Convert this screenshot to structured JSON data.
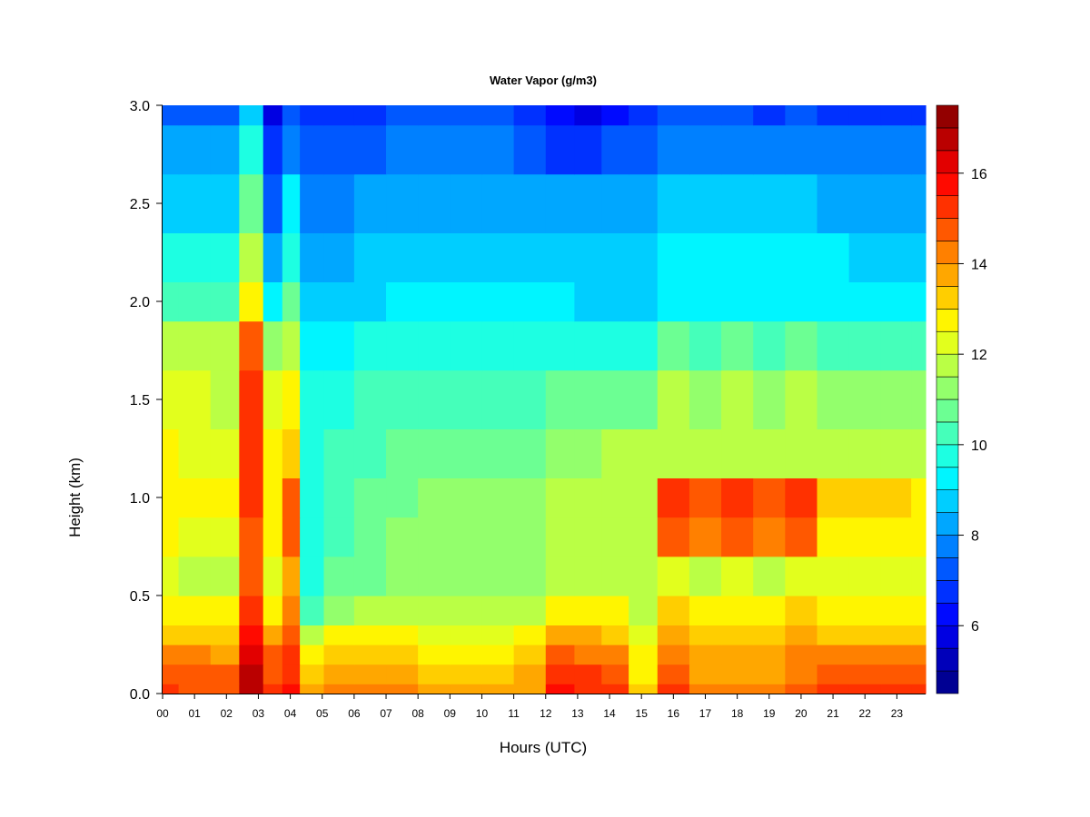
{
  "chart_data": {
    "type": "heatmap",
    "title": "Water Vapor (g/m3)",
    "xlabel": "Hours (UTC)",
    "ylabel": "Height (km)",
    "xlim": [
      0,
      23.9
    ],
    "ylim": [
      0.0,
      3.0
    ],
    "x_ticks": [
      "00",
      "01",
      "02",
      "03",
      "04",
      "05",
      "06",
      "07",
      "08",
      "09",
      "10",
      "11",
      "12",
      "13",
      "14",
      "15",
      "16",
      "17",
      "18",
      "19",
      "20",
      "21",
      "22",
      "23"
    ],
    "y_ticks": [
      "0.0",
      "0.5",
      "1.0",
      "1.5",
      "2.0",
      "2.5",
      "3.0"
    ],
    "colorbar": {
      "range": [
        4.5,
        17.5
      ],
      "ticks": [
        "6",
        "8",
        "10",
        "12",
        "14",
        "16"
      ],
      "levels": 26,
      "colormap": "jet"
    },
    "heights_km": [
      0.0,
      0.1,
      0.2,
      0.3,
      0.4,
      0.6,
      0.8,
      1.0,
      1.2,
      1.5,
      1.8,
      2.0,
      2.2,
      2.5,
      2.8,
      3.0
    ],
    "hours_utc": [
      0.0,
      1.0,
      2.0,
      2.8,
      3.5,
      4.0,
      4.6,
      5.5,
      6.5,
      7.5,
      8.5,
      9.5,
      10.5,
      11.5,
      12.5,
      13.3,
      14.2,
      15.0,
      16.0,
      17.0,
      18.0,
      19.0,
      20.0,
      21.0,
      22.0,
      23.0,
      23.9
    ],
    "values_g_m3": [
      [
        15.0,
        14.8,
        14.8,
        16.8,
        15.2,
        15.5,
        13.5,
        14.0,
        14.0,
        14.0,
        13.5,
        13.5,
        13.5,
        13.8,
        15.5,
        15.3,
        15.3,
        13.0,
        15.0,
        14.0,
        14.0,
        14.0,
        14.8,
        15.0,
        15.0,
        15.0,
        15.0
      ],
      [
        14.5,
        14.5,
        14.5,
        16.5,
        14.8,
        15.3,
        13.0,
        13.8,
        13.6,
        13.5,
        13.0,
        13.0,
        13.0,
        13.5,
        15.3,
        15.0,
        14.8,
        12.8,
        14.5,
        13.5,
        13.5,
        13.5,
        14.3,
        14.5,
        14.5,
        14.5,
        14.5
      ],
      [
        14.0,
        14.0,
        13.8,
        16.2,
        14.5,
        15.0,
        12.5,
        13.3,
        13.2,
        13.3,
        12.8,
        12.8,
        12.8,
        13.0,
        14.5,
        14.2,
        14.0,
        12.5,
        14.0,
        13.5,
        13.5,
        13.5,
        14.0,
        14.0,
        14.0,
        14.0,
        14.0
      ],
      [
        13.2,
        13.3,
        13.2,
        15.5,
        13.6,
        14.5,
        11.5,
        12.5,
        12.5,
        12.8,
        12.3,
        12.3,
        12.3,
        12.5,
        13.8,
        13.5,
        13.3,
        12.3,
        13.5,
        13.0,
        13.0,
        13.0,
        13.5,
        13.3,
        13.3,
        13.3,
        13.3
      ],
      [
        12.5,
        12.5,
        12.5,
        15.0,
        12.8,
        14.0,
        10.3,
        11.3,
        11.5,
        12.0,
        11.8,
        11.8,
        11.8,
        11.8,
        12.8,
        12.8,
        12.8,
        12.0,
        13.0,
        12.5,
        12.5,
        12.5,
        13.0,
        12.8,
        12.8,
        12.8,
        12.8
      ],
      [
        12.2,
        12.0,
        12.0,
        14.5,
        12.3,
        13.5,
        9.8,
        10.5,
        10.8,
        11.3,
        11.3,
        11.3,
        11.2,
        11.0,
        11.5,
        11.5,
        11.8,
        11.8,
        12.3,
        12.0,
        12.2,
        12.0,
        12.3,
        12.3,
        12.3,
        12.3,
        12.3
      ],
      [
        12.5,
        12.3,
        12.3,
        14.8,
        12.5,
        14.5,
        9.8,
        10.3,
        10.6,
        11.0,
        11.2,
        11.2,
        11.2,
        11.0,
        11.5,
        11.6,
        11.8,
        11.8,
        14.5,
        14.0,
        14.5,
        14.0,
        14.5,
        12.5,
        12.8,
        12.8,
        12.5
      ],
      [
        12.8,
        12.6,
        12.6,
        15.2,
        12.8,
        14.8,
        9.8,
        10.2,
        10.5,
        10.8,
        11.0,
        11.0,
        11.0,
        11.0,
        11.8,
        11.8,
        12.0,
        12.0,
        15.0,
        14.5,
        15.0,
        14.5,
        15.0,
        13.0,
        13.0,
        13.0,
        12.8
      ],
      [
        12.5,
        12.3,
        12.3,
        15.0,
        12.5,
        13.0,
        9.7,
        10.0,
        10.3,
        10.5,
        10.5,
        10.6,
        10.5,
        10.5,
        11.0,
        11.2,
        11.5,
        11.5,
        12.0,
        11.8,
        12.0,
        11.8,
        12.0,
        11.8,
        11.8,
        11.8,
        11.8
      ],
      [
        12.2,
        12.2,
        12.0,
        15.3,
        12.2,
        12.5,
        9.6,
        9.8,
        10.0,
        10.2,
        10.3,
        10.3,
        10.3,
        10.3,
        10.5,
        10.5,
        10.8,
        10.8,
        11.5,
        11.3,
        11.5,
        11.3,
        11.5,
        11.3,
        11.0,
        11.0,
        11.0
      ],
      [
        11.5,
        11.5,
        11.5,
        14.5,
        11.3,
        11.5,
        9.2,
        9.3,
        9.5,
        9.8,
        9.8,
        9.8,
        9.8,
        9.8,
        9.8,
        9.8,
        9.8,
        9.8,
        10.5,
        10.3,
        10.5,
        10.3,
        10.5,
        10.3,
        10.0,
        10.0,
        10.0
      ],
      [
        10.0,
        10.0,
        10.0,
        12.5,
        9.0,
        10.5,
        8.5,
        8.6,
        8.8,
        9.0,
        9.0,
        9.0,
        9.0,
        9.0,
        9.0,
        8.8,
        8.8,
        8.8,
        9.3,
        9.2,
        9.3,
        9.2,
        9.3,
        9.2,
        9.0,
        9.0,
        9.0
      ],
      [
        9.5,
        9.5,
        9.5,
        11.5,
        8.2,
        9.8,
        8.2,
        8.3,
        8.5,
        8.7,
        8.8,
        8.8,
        8.8,
        8.8,
        8.8,
        8.6,
        8.6,
        8.6,
        9.0,
        9.0,
        9.0,
        9.0,
        9.0,
        9.0,
        8.8,
        8.8,
        8.8
      ],
      [
        8.8,
        8.8,
        8.8,
        10.5,
        7.3,
        9.0,
        7.8,
        7.8,
        8.0,
        8.2,
        8.3,
        8.3,
        8.2,
        8.3,
        8.2,
        8.0,
        8.2,
        8.2,
        8.5,
        8.5,
        8.5,
        8.5,
        8.5,
        8.3,
        8.2,
        8.2,
        8.2
      ],
      [
        8.0,
        8.0,
        8.0,
        9.5,
        6.5,
        7.8,
        7.2,
        7.2,
        7.3,
        7.5,
        7.6,
        7.5,
        7.5,
        7.3,
        6.8,
        6.5,
        7.0,
        7.2,
        7.8,
        7.8,
        7.8,
        7.5,
        7.8,
        7.6,
        7.5,
        7.5,
        7.5
      ],
      [
        7.0,
        7.0,
        7.0,
        8.5,
        5.8,
        7.0,
        6.8,
        6.8,
        6.8,
        7.0,
        7.0,
        7.0,
        7.0,
        6.5,
        6.0,
        5.5,
        6.2,
        6.5,
        7.0,
        7.0,
        7.0,
        6.8,
        7.0,
        6.8,
        6.8,
        6.8,
        6.8
      ]
    ]
  }
}
